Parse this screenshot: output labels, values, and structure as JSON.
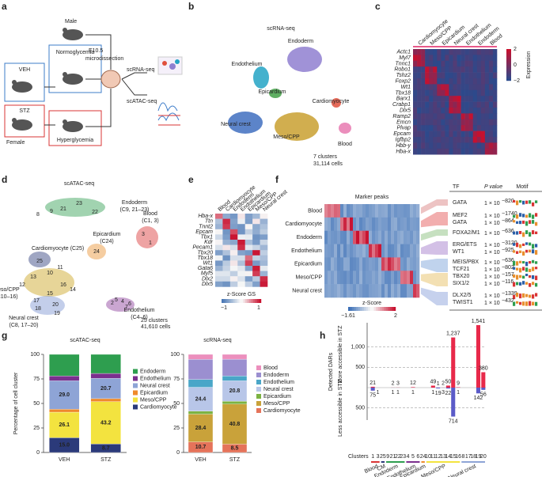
{
  "figure": {
    "a": {
      "letter": "a",
      "male": "Male",
      "normo": "Normoglycemia",
      "veh": "VEH",
      "stz": "STZ",
      "female": "Female",
      "hyper": "Hyperglycemia",
      "stage": "E10.5",
      "dissect": "microdissection",
      "rna": "scRNA-seq",
      "atac": "scATAC-seq"
    },
    "b": {
      "letter": "b",
      "title": "scRNA-seq",
      "clusters": [
        {
          "label": "Endoderm",
          "color": "#8f7fd0"
        },
        {
          "label": "Endothelium",
          "color": "#23a3c4"
        },
        {
          "label": "Epicardium",
          "color": "#43a047"
        },
        {
          "label": "Cardiomyocyte",
          "color": "#e0503c"
        },
        {
          "label": "Neural crest",
          "color": "#3f6fc0"
        },
        {
          "label": "Meso/CPP",
          "color": "#c9a030"
        },
        {
          "label": "Blood",
          "color": "#e87ab0"
        }
      ],
      "count": "7 clusters",
      "cells": "31,114 cells"
    },
    "c": {
      "letter": "c",
      "columns": [
        "Cardiomyocyte",
        "Meso/CPP",
        "Epicardium",
        "Neural crest",
        "Endothelium",
        "Endoderm",
        "Blood"
      ],
      "genes": [
        "Actc1",
        "Myl7",
        "Tnnc1",
        "Robo1",
        "Tshz2",
        "Foxp2",
        "Wt1",
        "Tbx18",
        "Barx1",
        "Crabp1",
        "Dlx5",
        "Ramp2",
        "Emcn",
        "Plvap",
        "Epcam",
        "Igfbp2",
        "Hbb-y",
        "Hba-x"
      ],
      "legend_title": "Expression",
      "legend_ticks": [
        "2",
        "0",
        "−2"
      ]
    },
    "d": {
      "letter": "d",
      "title": "scATAC-seq",
      "numbers": [
        "8",
        "9",
        "21",
        "23",
        "22",
        "3",
        "1",
        "25",
        "24",
        "13",
        "10",
        "11",
        "12",
        "16",
        "15",
        "14",
        "17",
        "18",
        "19",
        "20",
        "2",
        "7",
        "5",
        "4",
        "6"
      ],
      "groups": [
        {
          "label": "Endoderm",
          "sub": "(C9, 21–23)",
          "color": "#2e9e4f"
        },
        {
          "label": "Cardiomyocyte",
          "sub": "(C25)",
          "color": "#2b3a7a"
        },
        {
          "label": "Epicardium",
          "sub": "(C24)",
          "color": "#e8902e"
        },
        {
          "label": "Blood",
          "sub": "(C1, 3)",
          "color": "#d93434"
        },
        {
          "label": "Meso/CPP",
          "sub": "(C10–16)",
          "color": "#c9a21a"
        },
        {
          "label": "Endothelium",
          "sub": "(C4–6)",
          "color": "#8a3a9a"
        },
        {
          "label": "Neural crest",
          "sub": "(C8, 17–20)",
          "color": "#7b93d0"
        }
      ],
      "count": "25 clusters",
      "cells": "41,610 cells"
    },
    "e": {
      "letter": "e",
      "columns": [
        "Blood",
        "Cardiomyocyte",
        "Endoderm",
        "Endothelium",
        "Epicardium",
        "Meso/CPP",
        "Neural crest"
      ],
      "genes": [
        "Hba-x",
        "Ttn",
        "Tnnt2",
        "Epcam",
        "Tbx1",
        "Kdr",
        "Pecam1",
        "Tbx20",
        "Tbx18",
        "Wt1",
        "Gata6",
        "Myf5",
        "Dlx2",
        "Dlx5"
      ],
      "legend_title": "z-Score GS",
      "legend_ticks": [
        "−1",
        "1"
      ]
    },
    "f": {
      "letter": "f",
      "title": "Marker peaks",
      "rows": [
        "Blood",
        "Cardiomyocyte",
        "Endoderm",
        "Endothelium",
        "Epicardium",
        "Meso/CPP",
        "Neural crest"
      ],
      "legend_title": "z-Score",
      "legend_ticks": [
        "−1.61",
        "2"
      ],
      "headers": [
        "TF",
        "P value",
        "Motif"
      ],
      "motifs": [
        {
          "tf": "GATA",
          "base": "1 × 10",
          "exp": "−820"
        },
        {
          "tf": "MEF2",
          "base": "1 × 10",
          "exp": "−1740"
        },
        {
          "tf": "GATA",
          "base": "1 × 10",
          "exp": "−864"
        },
        {
          "tf": "FOXA2/M1",
          "base": "1 × 10",
          "exp": "−636"
        },
        {
          "tf": "ERG/ETS",
          "base": "1 × 10",
          "exp": "−3120"
        },
        {
          "tf": "WT1",
          "base": "1 × 10",
          "exp": "−925"
        },
        {
          "tf": "MEIS/PBX",
          "base": "1 × 10",
          "exp": "−636"
        },
        {
          "tf": "TCF21",
          "base": "1 × 10",
          "exp": "−802"
        },
        {
          "tf": "TBX20",
          "base": "1 × 10",
          "exp": "−157"
        },
        {
          "tf": "SIX1/2",
          "base": "1 × 10",
          "exp": "−116"
        },
        {
          "tf": "DLX2/5",
          "base": "1 × 10",
          "exp": "−1339"
        },
        {
          "tf": "TWIST1",
          "base": "1 × 10",
          "exp": "−432"
        }
      ]
    },
    "g": {
      "letter": "g"
    },
    "h": {
      "letter": "h"
    }
  },
  "chart_data": [
    {
      "type": "stacked_bar",
      "title": "scATAC-seq",
      "ylabel": "Percentage of cell cluster",
      "categories": [
        "VEH",
        "STZ"
      ],
      "ylim": [
        0,
        100
      ],
      "yticks": [
        0,
        25,
        50,
        75,
        100
      ],
      "series": [
        {
          "name": "Cardiomyocyte",
          "color": "#2b3a7a",
          "values": [
            15.0,
            8.7
          ],
          "value_labels": [
            "15.0",
            "8.7"
          ]
        },
        {
          "name": "Meso/CPP",
          "color": "#f3e33f",
          "values": [
            26.1,
            43.2
          ],
          "value_labels": [
            "26.1",
            "43.2"
          ]
        },
        {
          "name": "Epicardium",
          "color": "#ef8a2c",
          "values": [
            3,
            3
          ]
        },
        {
          "name": "Neural crest",
          "color": "#8ea4d6",
          "values": [
            29.0,
            20.7
          ],
          "value_labels": [
            "29.0",
            "20.7"
          ]
        },
        {
          "name": "Endothelium",
          "color": "#7b2f8e",
          "values": [
            5,
            5
          ]
        },
        {
          "name": "Endoderm",
          "color": "#2e9e4f",
          "values": [
            21.9,
            19.4
          ]
        }
      ]
    },
    {
      "type": "stacked_bar",
      "title": "scRNA-seq",
      "categories": [
        "VEH",
        "STZ"
      ],
      "ylim": [
        0,
        100
      ],
      "yticks": [
        0,
        25,
        50,
        75,
        100
      ],
      "series": [
        {
          "name": "Cardiomyocyte",
          "color": "#e5735a",
          "values": [
            10.7,
            8.5
          ],
          "value_labels": [
            "10.7",
            "8.5"
          ]
        },
        {
          "name": "Meso/CPP",
          "color": "#c9a23a",
          "values": [
            28.4,
            40.8
          ],
          "value_labels": [
            "28.4",
            "40.8"
          ]
        },
        {
          "name": "Epicardium",
          "color": "#7cb342",
          "values": [
            3,
            3
          ]
        },
        {
          "name": "Neural crest",
          "color": "#b8c6e8",
          "values": [
            24.4,
            20.8
          ],
          "value_labels": [
            "24.4",
            "20.8"
          ]
        },
        {
          "name": "Endothelium",
          "color": "#4aa6c8",
          "values": [
            8,
            5
          ]
        },
        {
          "name": "Endoderm",
          "color": "#9b8fd0",
          "values": [
            20.5,
            17
          ]
        },
        {
          "name": "Blood",
          "color": "#ec8fbd",
          "values": [
            5,
            4.9
          ]
        }
      ]
    },
    {
      "type": "diverging_bar",
      "ylabel": "Detected DARs",
      "xlabel": "Clusters",
      "categories": [
        "1",
        "3",
        "25",
        "9",
        "21",
        "22",
        "23",
        "4",
        "5",
        "6",
        "24",
        "10",
        "11",
        "12",
        "13",
        "14",
        "15",
        "16",
        "8",
        "17",
        "18",
        "19",
        "20"
      ],
      "ylim": [
        -800,
        1600
      ],
      "yticks": [
        {
          "value": -500,
          "label": "500"
        },
        500,
        {
          "value": 1000,
          "label": "1,000"
        }
      ],
      "groups": [
        {
          "label": "Blood",
          "color": "#d93434"
        },
        {
          "label": "CM",
          "color": "#2b3a7a"
        },
        {
          "label": "Endoderm",
          "color": "#2e9e4f"
        },
        {
          "label": "Endothelium",
          "color": "#7b2f8e"
        },
        {
          "label": "Epicardium",
          "color": "#ef8a2c"
        },
        {
          "label": "Meso/CPP",
          "color": "#f3e33f"
        },
        {
          "label": "Neural crest",
          "color": "#8ea4d6"
        }
      ],
      "series": [
        {
          "name": "More accessible in STZ",
          "color": "#e8294a",
          "direction": "up",
          "values": [
            21,
            0,
            0,
            0,
            2,
            3,
            0,
            0,
            12,
            0,
            0,
            0,
            49,
            1,
            2,
            50,
            1237,
            9,
            0,
            0,
            0,
            1541,
            380
          ],
          "value_labels": [
            "21",
            null,
            null,
            null,
            "2",
            "3",
            null,
            null,
            "12",
            null,
            null,
            null,
            "49",
            "1",
            "2",
            "50",
            "1,237",
            "9",
            null,
            null,
            null,
            "1,541",
            "380"
          ]
        },
        {
          "name": "Less accessible in STZ",
          "color": "#5b5bc8",
          "direction": "down",
          "values": [
            75,
            1,
            0,
            0,
            1,
            1,
            0,
            0,
            1,
            0,
            0,
            0,
            1,
            19,
            3,
            22,
            714,
            1,
            0,
            0,
            0,
            142,
            56
          ],
          "value_labels": [
            "75",
            "1",
            null,
            null,
            "1",
            "1",
            null,
            null,
            "1",
            null,
            null,
            null,
            "1",
            "19",
            "3",
            "22",
            "714",
            "1",
            null,
            null,
            null,
            "142",
            "56"
          ]
        }
      ]
    }
  ]
}
